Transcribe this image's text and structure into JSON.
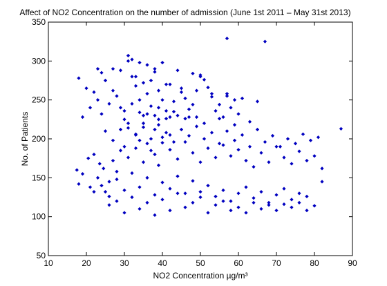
{
  "chart_data": {
    "type": "scatter",
    "title": "Affect of NO2 Concentration on the number of admission (June 1st 2011 – May 31st 2013)",
    "xlabel": "NO2 Concentration µg/m³",
    "ylabel": "No. of Patients",
    "xlim": [
      10,
      90
    ],
    "ylim": [
      50,
      350
    ],
    "xticks": [
      10,
      20,
      30,
      40,
      50,
      60,
      70,
      80,
      90
    ],
    "yticks": [
      50,
      100,
      150,
      200,
      250,
      300,
      350
    ],
    "xtick_labels": [
      "10",
      "20",
      "30",
      "40",
      "50",
      "60",
      "70",
      "80",
      "90"
    ],
    "ytick_labels": [
      "50",
      "100",
      "150",
      "200",
      "250",
      "300",
      "350"
    ],
    "grid": false,
    "marker_color": "#0000c0",
    "marker": "diamond",
    "series": [
      {
        "x": [
          18,
          19,
          20,
          21,
          22,
          23,
          24,
          24,
          25,
          26,
          27,
          28,
          29,
          17.5,
          18,
          19,
          20.5,
          21,
          22,
          23,
          23.5,
          24.5,
          25,
          26,
          27,
          28,
          29,
          30,
          31,
          32,
          33,
          34,
          35,
          36,
          37,
          38,
          39,
          40,
          41,
          42,
          31,
          32,
          33,
          34,
          35,
          36,
          37,
          38,
          39,
          40,
          41,
          42,
          43,
          44,
          45,
          46,
          47,
          48,
          49,
          50,
          51,
          52,
          53,
          54,
          55,
          56,
          57,
          58,
          59,
          60,
          30,
          31,
          33,
          35,
          36,
          38,
          39,
          40,
          42,
          44,
          46,
          48,
          50,
          52,
          54,
          56,
          58,
          60,
          62,
          64,
          66,
          68,
          70,
          72,
          74,
          76,
          78,
          80,
          82,
          22,
          24,
          26,
          28,
          30,
          32,
          34,
          36,
          38,
          40,
          42,
          44,
          46,
          48,
          50,
          52,
          54,
          56,
          58,
          60,
          62,
          64,
          66,
          68,
          70,
          72,
          74,
          76,
          78,
          25,
          27,
          29,
          31,
          33,
          35,
          37,
          39,
          41,
          43,
          45,
          47,
          49,
          51,
          53,
          55,
          57,
          59,
          61,
          63,
          65,
          67,
          69,
          71,
          73,
          75,
          77,
          79,
          81,
          26,
          28,
          30,
          32,
          34,
          36,
          38,
          40,
          42,
          44,
          46,
          48,
          50,
          52,
          54,
          56,
          58,
          60,
          62,
          64,
          66,
          68,
          70,
          72,
          74,
          76,
          78,
          80,
          82,
          31,
          32,
          34,
          36,
          38,
          40,
          44,
          48,
          50,
          57,
          67,
          87,
          23,
          27,
          29,
          33,
          37,
          41,
          45,
          49,
          53,
          57,
          61,
          65,
          35,
          39,
          43,
          47,
          51,
          55,
          59,
          63,
          30,
          34,
          38,
          42,
          46
        ],
        "y": [
          278,
          228,
          265,
          240,
          260,
          250,
          285,
          232,
          275,
          245,
          262,
          255,
          240,
          160,
          142,
          155,
          175,
          138,
          180,
          150,
          168,
          162,
          132,
          145,
          172,
          158,
          185,
          225,
          214,
          245,
          205,
          198,
          220,
          232,
          185,
          212,
          240,
          195,
          226,
          205,
          300,
          280,
          268,
          250,
          272,
          258,
          242,
          286,
          262,
          250,
          236,
          270,
          248,
          230,
          260,
          252,
          238,
          244,
          228,
          282,
          276,
          266,
          254,
          236,
          244,
          228,
          258,
          240,
          250,
          232,
          190,
          176,
          188,
          170,
          194,
          180,
          166,
          202,
          186,
          174,
          196,
          182,
          170,
          188,
          176,
          192,
          178,
          186,
          172,
          164,
          182,
          170,
          190,
          176,
          168,
          184,
          172,
          178,
          162,
          132,
          140,
          126,
          148,
          134,
          156,
          138,
          150,
          128,
          144,
          136,
          152,
          130,
          146,
          132,
          140,
          126,
          134,
          120,
          130,
          138,
          124,
          132,
          118,
          128,
          136,
          122,
          130,
          126,
          210,
          198,
          212,
          220,
          206,
          215,
          200,
          218,
          208,
          196,
          212,
          204,
          216,
          200,
          208,
          194,
          210,
          198,
          205,
          190,
          212,
          196,
          204,
          190,
          200,
          194,
          206,
          198,
          202,
          115,
          120,
          105,
          125,
          110,
          118,
          102,
          122,
          108,
          130,
          112,
          118,
          125,
          105,
          115,
          120,
          108,
          112,
          105,
          118,
          110,
          115,
          108,
          116,
          112,
          118,
          108,
          114,
          145,
          307,
          302,
          298,
          295,
          290,
          298,
          288,
          284,
          280,
          329,
          325,
          213,
          290,
          290,
          288,
          280,
          275,
          270,
          265,
          262,
          258,
          255,
          252,
          248,
          230,
          225,
          235,
          228,
          220,
          226,
          218,
          222,
          236,
          234,
          230,
          228,
          226
        ]
      }
    ]
  }
}
